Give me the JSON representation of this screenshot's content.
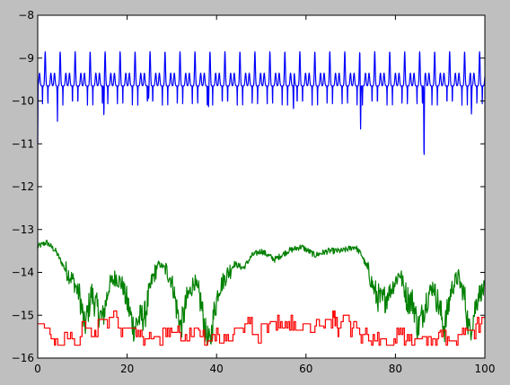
{
  "chart_data": {
    "type": "line",
    "title": "",
    "xlabel": "",
    "ylabel": "",
    "xlim": [
      0,
      100
    ],
    "ylim": [
      -16,
      -8
    ],
    "grid": false,
    "x_ticks": [
      "0",
      "20",
      "40",
      "60",
      "80",
      "100"
    ],
    "y_ticks": [
      "−8",
      "−9",
      "−10",
      "−11",
      "−12",
      "−13",
      "−14",
      "−15",
      "−16"
    ],
    "series": [
      {
        "color": "#0000ff",
        "kind": "periodic",
        "period": 3.35,
        "base": -9.65,
        "side_peak": -9.35,
        "main_peak": -8.85,
        "dip": -10.1,
        "first_value": -11.0,
        "deep_dips": [
          {
            "x": 4.4,
            "y": -10.5
          },
          {
            "x": 14.8,
            "y": -10.8
          },
          {
            "x": 24.8,
            "y": -10.4
          },
          {
            "x": 38.2,
            "y": -10.6
          },
          {
            "x": 57.2,
            "y": -10.8
          },
          {
            "x": 72.2,
            "y": -11.3
          },
          {
            "x": 86.4,
            "y": -11.8
          },
          {
            "x": 97.0,
            "y": -10.8
          }
        ]
      },
      {
        "color": "#008000",
        "kind": "noisy",
        "points": [
          [
            0,
            -13.4
          ],
          [
            2,
            -13.3
          ],
          [
            4,
            -13.5
          ],
          [
            6,
            -13.9
          ],
          [
            8,
            -14.2
          ],
          [
            9.5,
            -14.6
          ],
          [
            10.5,
            -15.3
          ],
          [
            12,
            -14.5
          ],
          [
            13.5,
            -14.9
          ],
          [
            14.5,
            -15.1
          ],
          [
            16,
            -14.3
          ],
          [
            17.5,
            -14.1
          ],
          [
            19,
            -14.3
          ],
          [
            20.5,
            -14.9
          ],
          [
            21.5,
            -15.3
          ],
          [
            22.5,
            -15.1
          ],
          [
            24,
            -15.0
          ],
          [
            25.5,
            -14.2
          ],
          [
            27,
            -13.8
          ],
          [
            28.5,
            -13.9
          ],
          [
            30,
            -14.2
          ],
          [
            31,
            -14.8
          ],
          [
            32,
            -15.3
          ],
          [
            33.5,
            -14.6
          ],
          [
            35,
            -14.2
          ],
          [
            36.5,
            -14.7
          ],
          [
            37.5,
            -15.4
          ],
          [
            38.5,
            -15.7
          ],
          [
            39.5,
            -14.9
          ],
          [
            40.5,
            -14.4
          ],
          [
            42,
            -14.1
          ],
          [
            44,
            -13.8
          ],
          [
            46,
            -13.9
          ],
          [
            48,
            -13.6
          ],
          [
            50,
            -13.5
          ],
          [
            53,
            -13.7
          ],
          [
            56,
            -13.5
          ],
          [
            59,
            -13.4
          ],
          [
            62,
            -13.6
          ],
          [
            65,
            -13.5
          ],
          [
            68,
            -13.5
          ],
          [
            71,
            -13.4
          ],
          [
            72.5,
            -13.6
          ],
          [
            74,
            -14.0
          ],
          [
            75.5,
            -14.5
          ],
          [
            77,
            -14.7
          ],
          [
            79,
            -14.4
          ],
          [
            81,
            -14.0
          ],
          [
            82.5,
            -14.6
          ],
          [
            84,
            -14.7
          ],
          [
            85,
            -15.3
          ],
          [
            86,
            -15.0
          ],
          [
            87,
            -14.6
          ],
          [
            88.5,
            -14.3
          ],
          [
            90,
            -14.9
          ],
          [
            91,
            -15.3
          ],
          [
            92.5,
            -14.4
          ],
          [
            94,
            -14.1
          ],
          [
            95.5,
            -14.6
          ],
          [
            96.5,
            -15.4
          ],
          [
            97.5,
            -15.0
          ],
          [
            98.5,
            -14.5
          ],
          [
            100,
            -14.4
          ]
        ]
      },
      {
        "color": "#ff0000",
        "kind": "step",
        "points": [
          [
            0,
            -15.2
          ],
          [
            1.5,
            -15.45
          ],
          [
            3,
            -15.55
          ],
          [
            4.5,
            -15.7
          ],
          [
            6,
            -15.55
          ],
          [
            8,
            -15.7
          ],
          [
            9.5,
            -15.3
          ],
          [
            12,
            -15.5
          ],
          [
            13.5,
            -15.1
          ],
          [
            16,
            -15.05
          ],
          [
            18,
            -15.3
          ],
          [
            20,
            -15.3
          ],
          [
            22,
            -15.5
          ],
          [
            24,
            -15.55
          ],
          [
            26,
            -15.5
          ],
          [
            28,
            -15.3
          ],
          [
            30,
            -15.4
          ],
          [
            32,
            -15.6
          ],
          [
            34,
            -15.3
          ],
          [
            36,
            -15.5
          ],
          [
            38,
            -15.6
          ],
          [
            40,
            -15.45
          ],
          [
            42,
            -15.6
          ],
          [
            44,
            -15.3
          ],
          [
            46,
            -15.2
          ],
          [
            48,
            -15.45
          ],
          [
            50,
            -15.2
          ],
          [
            52,
            -15.15
          ],
          [
            54,
            -15.3
          ],
          [
            56,
            -15.15
          ],
          [
            58,
            -15.35
          ],
          [
            60,
            -15.2
          ],
          [
            62,
            -15.25
          ],
          [
            64,
            -15.1
          ],
          [
            66,
            -15.05
          ],
          [
            67,
            -15.3
          ],
          [
            68,
            -15.15
          ],
          [
            70,
            -15.3
          ],
          [
            72,
            -15.45
          ],
          [
            74,
            -15.6
          ],
          [
            76,
            -15.55
          ],
          [
            78,
            -15.7
          ],
          [
            80,
            -15.45
          ],
          [
            82,
            -15.6
          ],
          [
            84,
            -15.55
          ],
          [
            86,
            -15.5
          ],
          [
            88,
            -15.55
          ],
          [
            90,
            -15.5
          ],
          [
            92,
            -15.6
          ],
          [
            94,
            -15.45
          ],
          [
            96,
            -15.35
          ],
          [
            98,
            -15.2
          ],
          [
            100,
            -15.3
          ]
        ]
      }
    ]
  }
}
